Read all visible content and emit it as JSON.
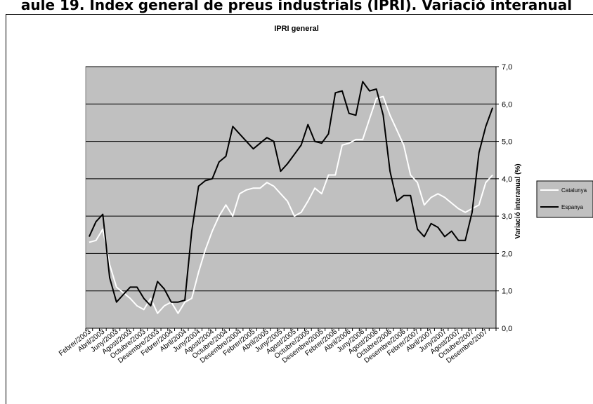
{
  "heading": "aule 19. Índex general de preus industrials (IPRI). Variació interanual",
  "chart_data": {
    "type": "line",
    "title": "IPRI general",
    "ylabel": "Variació interanual (%)",
    "xlabel": "",
    "ylim": [
      0,
      7
    ],
    "yticks": [
      "0,0",
      "1,0",
      "2,0",
      "3,0",
      "4,0",
      "5,0",
      "6,0",
      "7,0"
    ],
    "x_tick_labels": [
      "Febrer/2003",
      "Abril/2003",
      "Juny/2003",
      "Agost/2003",
      "Octubre/2003",
      "Desembre/2003",
      "Febrer/2004",
      "Abril/2004",
      "Juny/2004",
      "Agost/2004",
      "Octubre/2004",
      "Desembre/2004",
      "Febrer/2005",
      "Abril/2005",
      "Juny/2005",
      "Agost/2005",
      "Octubre/2005",
      "Desembre/2005",
      "Febrer/2006",
      "Abril/2006",
      "Juny/2006",
      "Agost/2006",
      "Octubre/2006",
      "Desembre/2006",
      "Febrer/2007",
      "Abril/2007",
      "Juny/2007",
      "Agost/2007",
      "Octubre/2007",
      "Desembre/2007"
    ],
    "n_points": 60,
    "grid": "horizontal",
    "legend_position": "right",
    "plot_background": "#c0c0c0",
    "series": [
      {
        "name": "Catalunya",
        "color": "#ffffff",
        "values": [
          2.3,
          2.35,
          2.65,
          1.7,
          1.1,
          0.95,
          0.8,
          0.6,
          0.5,
          0.8,
          0.4,
          0.6,
          0.7,
          0.4,
          0.7,
          0.8,
          1.5,
          2.1,
          2.6,
          3.0,
          3.3,
          3.0,
          3.6,
          3.7,
          3.75,
          3.75,
          3.9,
          3.8,
          3.6,
          3.4,
          3.0,
          3.1,
          3.4,
          3.75,
          3.6,
          4.1,
          4.1,
          4.9,
          4.95,
          5.05,
          5.05,
          5.6,
          6.15,
          6.2,
          5.7,
          5.3,
          4.9,
          4.1,
          3.9,
          3.3,
          3.5,
          3.6,
          3.5,
          3.35,
          3.2,
          3.1,
          3.2,
          3.3,
          3.9,
          4.1
        ]
      },
      {
        "name": "Espanya",
        "color": "#000000",
        "values": [
          2.45,
          2.85,
          3.05,
          1.35,
          0.7,
          0.9,
          1.1,
          1.1,
          0.8,
          0.6,
          1.25,
          1.05,
          0.7,
          0.7,
          0.75,
          2.6,
          3.8,
          3.95,
          4.0,
          4.45,
          4.6,
          5.4,
          5.2,
          5.0,
          4.8,
          4.95,
          5.1,
          5.0,
          4.2,
          4.4,
          4.65,
          4.9,
          5.45,
          5.0,
          4.95,
          5.2,
          6.3,
          6.35,
          5.75,
          5.7,
          6.6,
          6.35,
          6.4,
          5.7,
          4.2,
          3.4,
          3.55,
          3.55,
          2.65,
          2.45,
          2.8,
          2.7,
          2.45,
          2.6,
          2.35,
          2.35,
          3.1,
          4.7,
          5.4,
          5.9
        ]
      }
    ]
  }
}
